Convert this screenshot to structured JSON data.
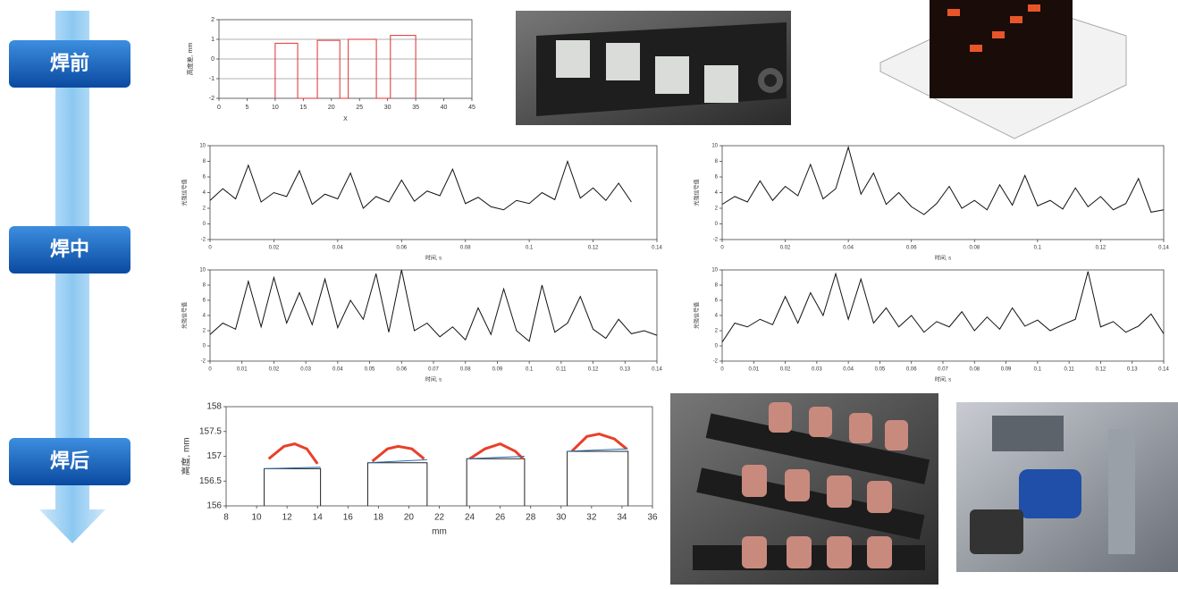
{
  "stages": [
    "焊前",
    "焊中",
    "焊后"
  ],
  "chart_data": [
    {
      "type": "line",
      "xlabel": "X",
      "ylabel": "高度差, mm",
      "xlim": [
        0,
        45
      ],
      "ylim": [
        -2,
        2
      ],
      "xticks": [
        0,
        5,
        10,
        15,
        20,
        25,
        30,
        35,
        40,
        45
      ],
      "yticks": [
        -2,
        -1,
        0,
        1,
        2
      ],
      "grid": true,
      "series": [
        {
          "color": "#e03030",
          "x": [
            10,
            10,
            14,
            14,
            17.5,
            17.5,
            21.5,
            21.5,
            23,
            23,
            28,
            28,
            30.5,
            30.5,
            35,
            35
          ],
          "values": [
            -2,
            0.8,
            0.8,
            -2,
            -2,
            0.95,
            0.95,
            -2,
            -2,
            1.0,
            1.0,
            -2,
            -2,
            1.2,
            1.2,
            -2
          ]
        }
      ]
    },
    {
      "type": "line",
      "xlabel": "时间, s",
      "ylabel": "光强信号值",
      "xlim": [
        0,
        0.14
      ],
      "ylim": [
        -2,
        10
      ],
      "xticks": [
        0,
        0.02,
        0.04,
        0.06,
        0.08,
        0.1,
        0.12,
        0.14
      ],
      "yticks": [
        -2,
        0,
        2,
        4,
        6,
        8,
        10
      ],
      "grid": false,
      "series": [
        {
          "color": "#111111",
          "x": [
            0,
            0.004,
            0.008,
            0.012,
            0.016,
            0.02,
            0.024,
            0.028,
            0.032,
            0.036,
            0.04,
            0.044,
            0.048,
            0.052,
            0.056,
            0.06,
            0.064,
            0.068,
            0.072,
            0.076,
            0.08,
            0.084,
            0.088,
            0.092,
            0.096,
            0.1,
            0.104,
            0.108,
            0.112,
            0.116,
            0.12,
            0.124,
            0.128,
            0.132
          ],
          "values": [
            3,
            4.5,
            3.2,
            7.5,
            2.8,
            4,
            3.5,
            6.8,
            2.5,
            3.8,
            3.2,
            6.5,
            2,
            3.5,
            2.8,
            5.6,
            2.9,
            4.2,
            3.6,
            7,
            2.6,
            3.4,
            2.2,
            1.8,
            3,
            2.6,
            4,
            3.1,
            8,
            3.3,
            4.6,
            3,
            5.2,
            2.8
          ]
        }
      ]
    },
    {
      "type": "line",
      "xlabel": "时间, s",
      "ylabel": "光强信号值",
      "xlim": [
        0,
        0.14
      ],
      "ylim": [
        -2,
        10
      ],
      "xticks": [
        0,
        0.02,
        0.04,
        0.06,
        0.08,
        0.1,
        0.12,
        0.14
      ],
      "yticks": [
        -2,
        0,
        2,
        4,
        6,
        8,
        10
      ],
      "grid": false,
      "series": [
        {
          "color": "#111111",
          "x": [
            0,
            0.004,
            0.008,
            0.012,
            0.016,
            0.02,
            0.024,
            0.028,
            0.032,
            0.036,
            0.04,
            0.044,
            0.048,
            0.052,
            0.056,
            0.06,
            0.064,
            0.068,
            0.072,
            0.076,
            0.08,
            0.084,
            0.088,
            0.092,
            0.096,
            0.1,
            0.104,
            0.108,
            0.112,
            0.116,
            0.12,
            0.124,
            0.128,
            0.132,
            0.136,
            0.14
          ],
          "values": [
            2.5,
            3.5,
            2.8,
            5.5,
            3,
            4.8,
            3.6,
            7.6,
            3.2,
            4.5,
            9.8,
            3.8,
            6.5,
            2.5,
            4,
            2.2,
            1.2,
            2.6,
            4.8,
            2,
            3,
            1.8,
            5,
            2.4,
            6.2,
            2.3,
            3,
            1.9,
            4.6,
            2.2,
            3.5,
            1.8,
            2.6,
            5.8,
            1.5,
            1.8
          ]
        }
      ]
    },
    {
      "type": "line",
      "xlabel": "时间, s",
      "ylabel": "光强信号值",
      "xlim": [
        0,
        0.14
      ],
      "ylim": [
        -2,
        10
      ],
      "xticks": [
        0,
        0.01,
        0.02,
        0.03,
        0.04,
        0.05,
        0.06,
        0.07,
        0.08,
        0.09,
        0.1,
        0.11,
        0.12,
        0.13,
        0.14
      ],
      "yticks": [
        -2,
        0,
        2,
        4,
        6,
        8,
        10
      ],
      "grid": false,
      "series": [
        {
          "color": "#111111",
          "x": [
            0,
            0.004,
            0.008,
            0.012,
            0.016,
            0.02,
            0.024,
            0.028,
            0.032,
            0.036,
            0.04,
            0.044,
            0.048,
            0.052,
            0.056,
            0.06,
            0.064,
            0.068,
            0.072,
            0.076,
            0.08,
            0.084,
            0.088,
            0.092,
            0.096,
            0.1,
            0.104,
            0.108,
            0.112,
            0.116,
            0.12,
            0.124,
            0.128,
            0.132,
            0.136,
            0.14
          ],
          "values": [
            1.5,
            3,
            2.2,
            8.5,
            2.5,
            9,
            3,
            7,
            2.8,
            8.8,
            2.4,
            6,
            3.5,
            9.5,
            1.8,
            10,
            2,
            3,
            1.2,
            2.5,
            0.8,
            5,
            1.5,
            7.5,
            2,
            0.6,
            8,
            1.8,
            3,
            6.5,
            2.2,
            1,
            3.5,
            1.6,
            2,
            1.4
          ]
        }
      ]
    },
    {
      "type": "line",
      "xlabel": "时间, s",
      "ylabel": "光强信号值",
      "xlim": [
        0,
        0.14
      ],
      "ylim": [
        -2,
        10
      ],
      "xticks": [
        0,
        0.01,
        0.02,
        0.03,
        0.04,
        0.05,
        0.06,
        0.07,
        0.08,
        0.09,
        0.1,
        0.11,
        0.12,
        0.13,
        0.14
      ],
      "yticks": [
        -2,
        0,
        2,
        4,
        6,
        8,
        10
      ],
      "grid": false,
      "series": [
        {
          "color": "#111111",
          "x": [
            0,
            0.004,
            0.008,
            0.012,
            0.016,
            0.02,
            0.024,
            0.028,
            0.032,
            0.036,
            0.04,
            0.044,
            0.048,
            0.052,
            0.056,
            0.06,
            0.064,
            0.068,
            0.072,
            0.076,
            0.08,
            0.084,
            0.088,
            0.092,
            0.096,
            0.1,
            0.104,
            0.108,
            0.112,
            0.116,
            0.12,
            0.124,
            0.128,
            0.132,
            0.136,
            0.14
          ],
          "values": [
            0.5,
            3,
            2.5,
            3.5,
            2.8,
            6.5,
            3,
            7,
            4,
            9.5,
            3.5,
            8.8,
            3,
            5,
            2.5,
            4,
            1.8,
            3.2,
            2.5,
            4.5,
            2,
            3.8,
            2.2,
            5,
            2.6,
            3.4,
            2,
            2.8,
            3.5,
            9.8,
            2.5,
            3.2,
            1.8,
            2.6,
            4.2,
            1.6
          ]
        }
      ]
    },
    {
      "type": "line",
      "xlabel": "mm",
      "ylabel": "高度, mm",
      "xlim": [
        8,
        36
      ],
      "ylim": [
        156,
        158
      ],
      "xticks": [
        8,
        10,
        12,
        14,
        16,
        18,
        20,
        22,
        24,
        26,
        28,
        30,
        32,
        34,
        36
      ],
      "yticks": [
        156,
        156.5,
        157,
        157.5,
        158
      ],
      "grid": false,
      "series": [
        {
          "color": "#222222",
          "x": [
            10.5,
            10.5,
            14.2,
            14.2,
            15.5,
            17.3,
            17.3,
            21.2,
            21.2,
            22.5,
            23.8,
            23.8,
            27.6,
            27.6,
            29,
            30.4,
            30.4,
            34.4,
            34.4
          ],
          "values": [
            156,
            156.75,
            156.75,
            156,
            null,
            156,
            156.87,
            156.87,
            156,
            null,
            156,
            156.95,
            156.95,
            156,
            null,
            156,
            157.1,
            157.1,
            156
          ]
        },
        {
          "color": "#e8402a",
          "x": [
            10.8,
            11.8,
            12.5,
            13.3,
            14,
            15.5,
            17.6,
            18.6,
            19.3,
            20.2,
            21,
            22.5,
            24,
            25,
            26,
            27,
            27.5,
            29,
            30.7,
            31.7,
            32.5,
            33.5,
            34.3
          ],
          "values": [
            156.95,
            157.2,
            157.25,
            157.15,
            156.85,
            null,
            156.9,
            157.15,
            157.2,
            157.15,
            156.95,
            null,
            156.95,
            157.15,
            157.25,
            157.1,
            156.95,
            null,
            157.1,
            157.4,
            157.45,
            157.35,
            157.15
          ]
        },
        {
          "color": "#2a6fb0",
          "x": [
            10.5,
            14.2,
            15.5,
            17.3,
            21.2,
            22.5,
            23.8,
            27.6,
            29,
            30.4,
            34.4
          ],
          "values": [
            156.75,
            156.78,
            null,
            156.87,
            156.93,
            null,
            156.95,
            157.0,
            null,
            157.1,
            157.15
          ]
        }
      ]
    }
  ]
}
